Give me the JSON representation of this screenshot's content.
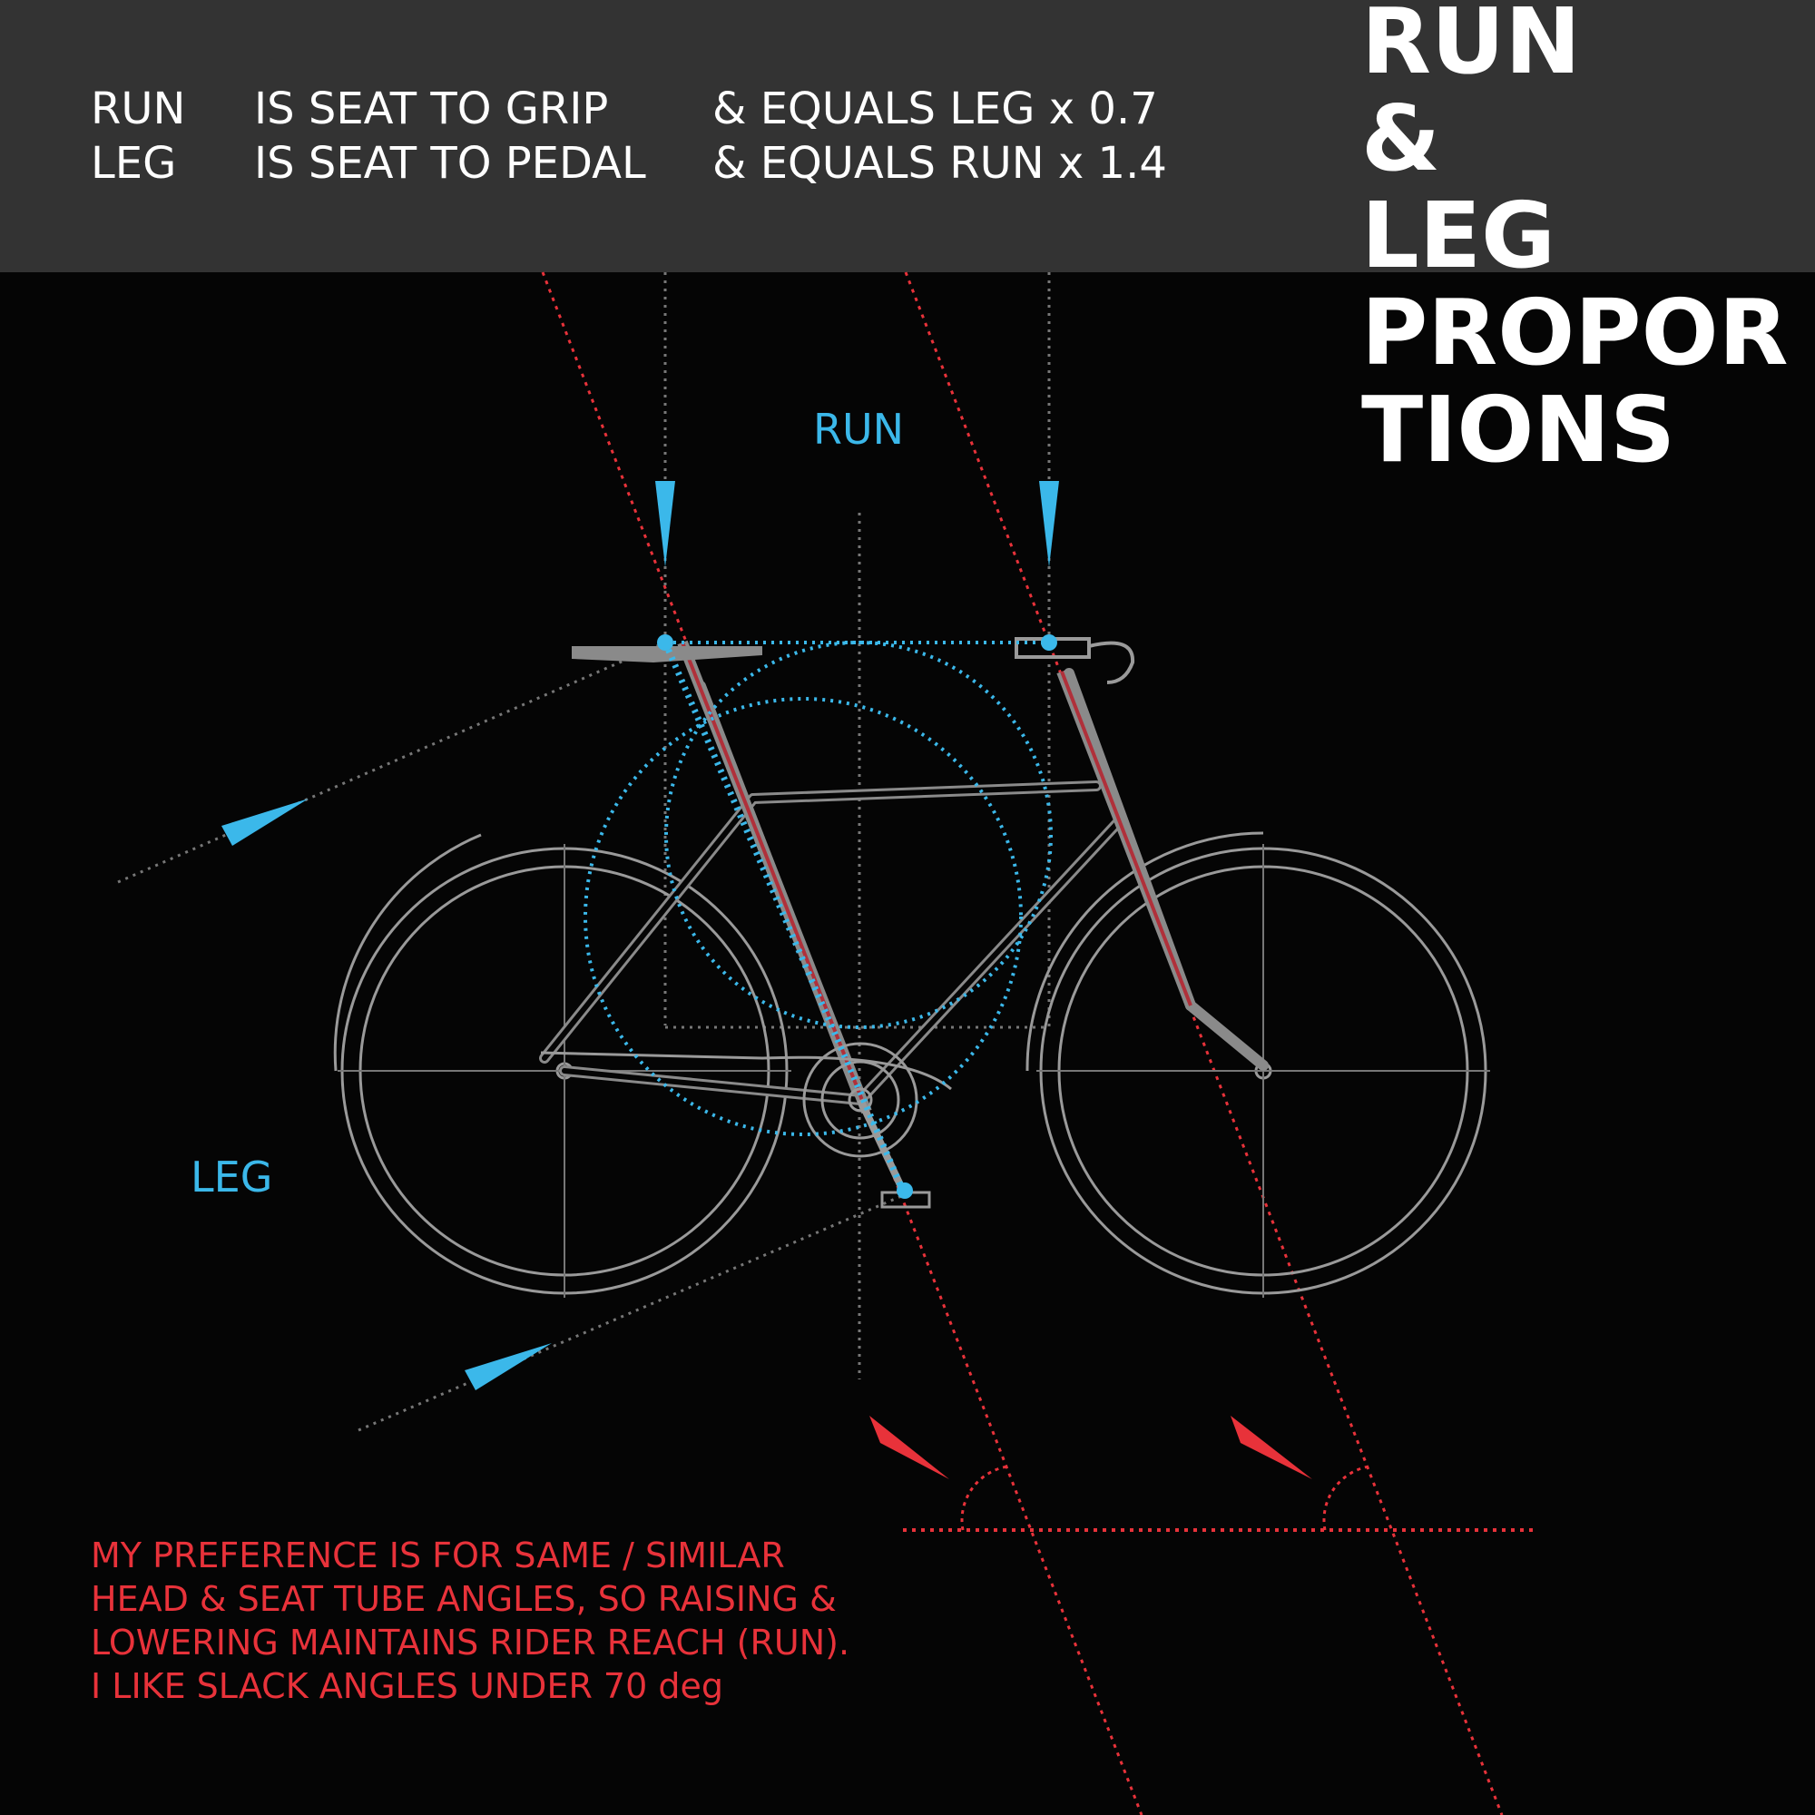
{
  "header": {
    "rows": [
      {
        "term": "RUN",
        "definition": "IS SEAT TO GRIP",
        "equation": "& EQUALS LEG x 0.7"
      },
      {
        "term": "LEG",
        "definition": "IS SEAT TO PEDAL",
        "equation": "& EQUALS RUN x 1.4"
      }
    ]
  },
  "title": {
    "lines": [
      "RUN",
      "&",
      "LEG",
      "PROPOR",
      "TIONS"
    ]
  },
  "labels": {
    "run": "RUN",
    "leg": "LEG"
  },
  "note": {
    "lines": [
      "MY PREFERENCE IS FOR SAME / SIMILAR",
      "HEAD & SEAT TUBE ANGLES, SO RAISING &",
      "LOWERING MAINTAINS RIDER REACH (RUN).",
      "I LIKE SLACK ANGLES UNDER 70 deg"
    ]
  },
  "colors": {
    "background": "#050505",
    "header_band": "#333333",
    "accent_blue": "#3bb8ea",
    "accent_red": "#e8323a",
    "frame_grey": "#8a8a8a",
    "text_white": "#ffffff"
  }
}
